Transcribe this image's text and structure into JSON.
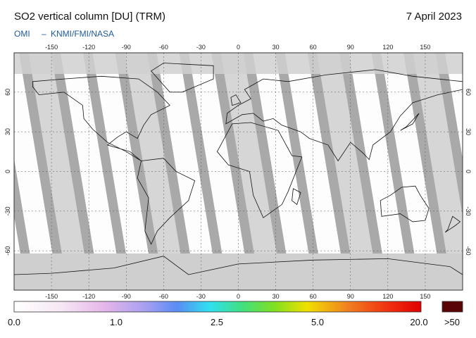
{
  "header": {
    "title": "SO2 vertical column [DU] (TRM)",
    "date": "7 April 2023",
    "source_left": "OMI",
    "source_sep": "–",
    "source_right": "KNMI/FMI/NASA"
  },
  "map": {
    "lon_ticks": [
      -150,
      -120,
      -90,
      -60,
      -30,
      0,
      30,
      60,
      90,
      120,
      150
    ],
    "lat_ticks": [
      60,
      30,
      0,
      -30,
      -60
    ]
  },
  "colorbar": {
    "labels": [
      "0.0",
      "1.0",
      "2.5",
      "5.0",
      "20.0"
    ],
    "overflow_label": ">50"
  }
}
